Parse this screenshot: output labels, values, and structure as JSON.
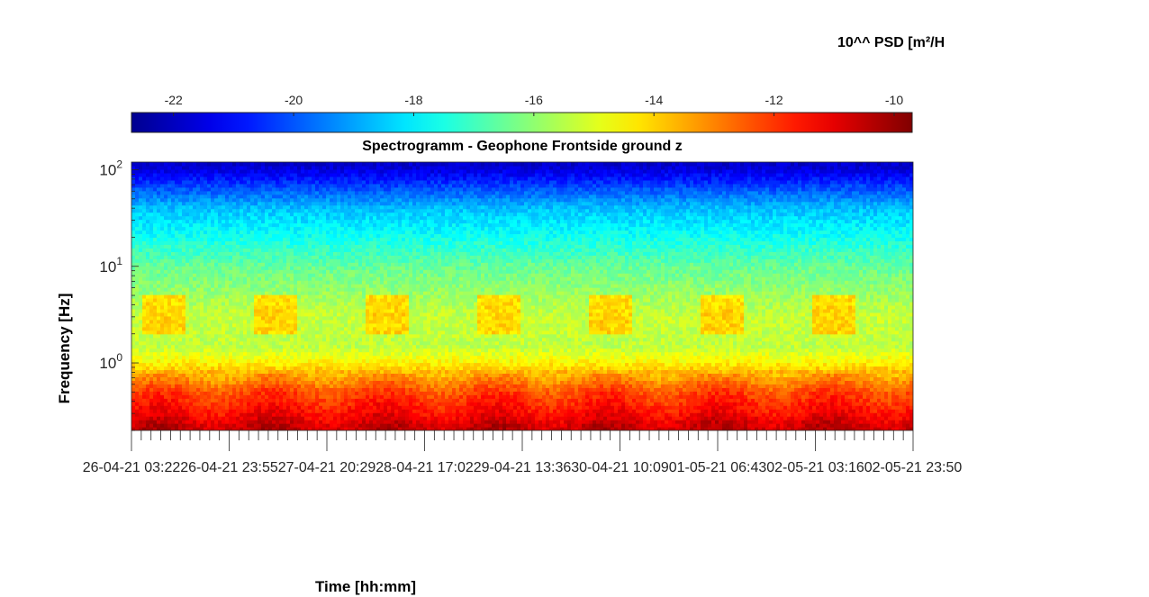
{
  "colors": {
    "colormap": [
      "#00008f",
      "#0000ff",
      "#00ffff",
      "#ffff00",
      "#ff0000",
      "#800000"
    ],
    "axis": "#262626"
  },
  "chart_data": {
    "type": "heatmap",
    "title": "Spectrogramm - Geophone Frontside ground z",
    "xlabel": "Time [hh:mm]",
    "ylabel": "Frequency [Hz]",
    "colorbar": {
      "label": "10^^ PSD [m²/H",
      "range": [
        -22.7,
        -9.7
      ],
      "ticks": [
        -22,
        -20,
        -18,
        -16,
        -14,
        -12,
        -10
      ],
      "colormap": "jet"
    },
    "x": {
      "start": "26-04-21 03:22",
      "end": "02-05-21 23:50",
      "tick_labels": [
        "26-04-21 03:22",
        "26-04-21 23:55",
        "27-04-21 20:29",
        "28-04-21 17:02",
        "29-04-21 13:36",
        "30-04-21 10:09",
        "01-05-21 06:43",
        "02-05-21 03:16",
        "02-05-21 23:50"
      ]
    },
    "y": {
      "scale": "log",
      "range_hz": [
        0.2,
        120
      ],
      "ticks": [
        1,
        10,
        100
      ],
      "tick_labels": [
        "10",
        "10",
        "10"
      ],
      "tick_exponents": [
        "0",
        "1",
        "2"
      ]
    },
    "psd_profile": [
      {
        "freq_hz": 0.22,
        "log10_psd": -10.6
      },
      {
        "freq_hz": 0.3,
        "log10_psd": -11.3
      },
      {
        "freq_hz": 0.5,
        "log10_psd": -12.2
      },
      {
        "freq_hz": 0.8,
        "log10_psd": -13.6
      },
      {
        "freq_hz": 1.0,
        "log10_psd": -14.4
      },
      {
        "freq_hz": 1.5,
        "log10_psd": -15.4
      },
      {
        "freq_hz": 3.0,
        "log10_psd": -15.3
      },
      {
        "freq_hz": 5.0,
        "log10_psd": -15.8
      },
      {
        "freq_hz": 10.0,
        "log10_psd": -16.5
      },
      {
        "freq_hz": 20.0,
        "log10_psd": -17.6
      },
      {
        "freq_hz": 40.0,
        "log10_psd": -18.6
      },
      {
        "freq_hz": 70.0,
        "log10_psd": -20.3
      },
      {
        "freq_hz": 110.0,
        "log10_psd": -21.8
      }
    ],
    "activity_band_hz": [
      2.0,
      5.0
    ],
    "daytime_activity_log10_psd": -13.5
  }
}
